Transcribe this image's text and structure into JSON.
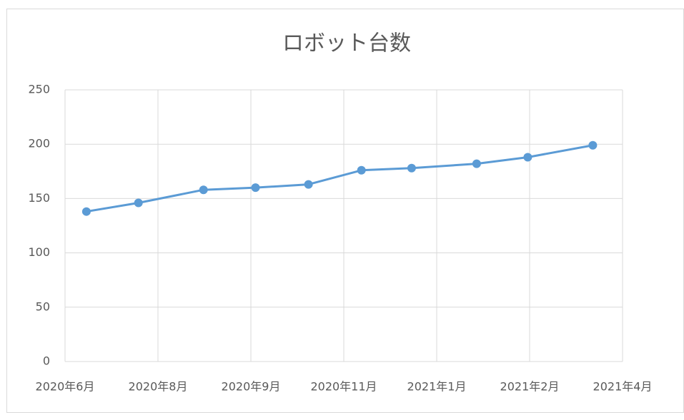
{
  "chart_data": {
    "type": "line",
    "title": "ロボット台数",
    "x": [
      0.23,
      0.79,
      1.49,
      2.05,
      2.62,
      3.19,
      3.73,
      4.43,
      4.98,
      5.68
    ],
    "series": [
      {
        "color": "#5b9bd5",
        "values": [
          138,
          146,
          158,
          160,
          163,
          176,
          178,
          182,
          188,
          199
        ]
      }
    ],
    "xlim": [
      0,
      6
    ],
    "xticks": [
      {
        "value": 0,
        "label": "2020年6月"
      },
      {
        "value": 1,
        "label": "2020年8月"
      },
      {
        "value": 2,
        "label": "2020年9月"
      },
      {
        "value": 3,
        "label": "2020年11月"
      },
      {
        "value": 4,
        "label": "2021年1月"
      },
      {
        "value": 5,
        "label": "2021年2月"
      },
      {
        "value": 6,
        "label": "2021年4月"
      }
    ],
    "ylim": [
      0,
      250
    ],
    "yticks": [
      0,
      50,
      100,
      150,
      200,
      250
    ],
    "grid": true
  }
}
